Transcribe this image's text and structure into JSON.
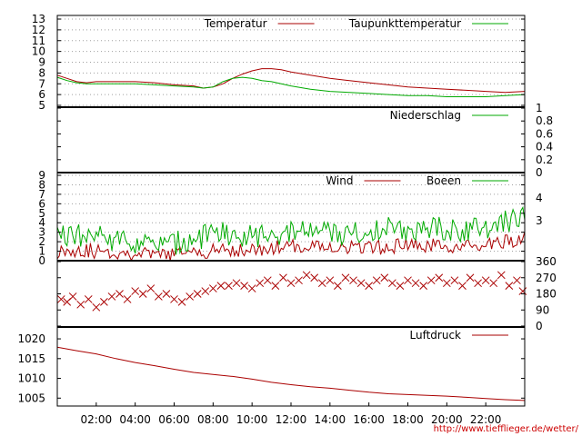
{
  "colors": {
    "red": "#aa0000",
    "green": "#00aa00"
  },
  "x_axis": {
    "unit": "hours",
    "range": [
      0,
      24
    ],
    "tick_values": [
      2,
      4,
      6,
      8,
      10,
      12,
      14,
      16,
      18,
      20,
      22
    ],
    "tick_labels": [
      "02:00",
      "04:00",
      "06:00",
      "08:00",
      "10:00",
      "12:00",
      "14:00",
      "16:00",
      "18:00",
      "20:00",
      "22:00"
    ]
  },
  "credit": "http://www.tiefflieger.de/wetter/",
  "chart_data": [
    {
      "type": "line",
      "ylim": [
        5,
        13
      ],
      "yticks": [
        5,
        6,
        7,
        8,
        9,
        10,
        11,
        12,
        13
      ],
      "grid": true,
      "legend": "top-right",
      "series": [
        {
          "name": "Temperatur",
          "color": "#aa0000",
          "x": [
            0,
            0.5,
            1,
            1.5,
            2,
            3,
            4,
            5,
            6,
            7,
            7.5,
            8,
            8.5,
            9,
            9.5,
            10,
            10.5,
            11,
            11.5,
            12,
            13,
            14,
            15,
            16,
            17,
            18,
            19,
            20,
            21,
            22,
            23,
            24
          ],
          "values": [
            7.8,
            7.5,
            7.2,
            7.1,
            7.2,
            7.2,
            7.2,
            7.1,
            6.9,
            6.8,
            6.6,
            6.7,
            7.0,
            7.5,
            7.9,
            8.2,
            8.4,
            8.4,
            8.3,
            8.1,
            7.8,
            7.5,
            7.3,
            7.1,
            6.9,
            6.7,
            6.6,
            6.5,
            6.4,
            6.3,
            6.2,
            6.3
          ]
        },
        {
          "name": "Taupunkttemperatur",
          "color": "#00aa00",
          "x": [
            0,
            0.5,
            1,
            1.5,
            2,
            3,
            4,
            5,
            6,
            7,
            7.5,
            8,
            8.5,
            9,
            9.5,
            10,
            10.5,
            11,
            11.5,
            12,
            13,
            14,
            15,
            16,
            17,
            18,
            19,
            20,
            21,
            22,
            23,
            24
          ],
          "values": [
            7.6,
            7.3,
            7.1,
            7.0,
            7.0,
            7.0,
            7.0,
            6.9,
            6.8,
            6.7,
            6.6,
            6.7,
            7.2,
            7.5,
            7.6,
            7.5,
            7.3,
            7.2,
            7.0,
            6.8,
            6.5,
            6.3,
            6.2,
            6.1,
            6.0,
            5.9,
            5.9,
            5.8,
            5.8,
            5.8,
            5.9,
            6.0
          ]
        }
      ]
    },
    {
      "type": "line",
      "ylim": [
        0,
        1
      ],
      "yticks": [
        0,
        0.2,
        0.4,
        0.6,
        0.8,
        1
      ],
      "ytick_labels": [
        "0",
        "0.2",
        "0.4",
        "0.6",
        "0.8",
        "1"
      ],
      "grid": false,
      "legend": "top-right",
      "series": [
        {
          "name": "Niederschlag",
          "color": "#00aa00",
          "x": [
            0,
            24
          ],
          "values": [
            0,
            0
          ]
        }
      ]
    },
    {
      "type": "line",
      "ylim": [
        0,
        9
      ],
      "yticks": [
        0,
        1,
        2,
        3,
        4,
        5,
        6,
        7,
        8,
        9
      ],
      "grid": true,
      "legend": "top-right",
      "right_labels": [
        "4",
        "3"
      ],
      "series": [
        {
          "name": "Wind",
          "color": "#aa0000",
          "x": [
            0,
            1,
            2,
            3,
            4,
            5,
            6,
            7,
            8,
            9,
            10,
            11,
            12,
            13,
            14,
            15,
            16,
            17,
            18,
            19,
            20,
            21,
            22,
            23,
            24
          ],
          "values": [
            1.0,
            1.2,
            1.0,
            0.8,
            0.8,
            0.5,
            0.7,
            0.9,
            1.0,
            1.2,
            1.1,
            1.3,
            1.5,
            1.6,
            1.5,
            1.4,
            1.3,
            1.5,
            1.6,
            1.5,
            1.6,
            1.4,
            1.5,
            2.0,
            2.3
          ]
        },
        {
          "name": "Boeen",
          "color": "#00aa00",
          "x": [
            0,
            1,
            2,
            3,
            4,
            5,
            6,
            7,
            8,
            9,
            10,
            11,
            12,
            13,
            14,
            15,
            16,
            17,
            18,
            19,
            20,
            21,
            22,
            23,
            24
          ],
          "values": [
            2.4,
            2.6,
            2.5,
            2.2,
            2.0,
            1.5,
            1.8,
            2.3,
            2.7,
            2.9,
            2.6,
            3.0,
            2.8,
            3.2,
            3.0,
            2.9,
            3.1,
            3.3,
            3.4,
            3.2,
            3.5,
            3.1,
            3.6,
            4.0,
            4.6
          ]
        }
      ]
    },
    {
      "type": "scatter",
      "ylim": [
        0,
        360
      ],
      "yticks": [
        0,
        90,
        180,
        270,
        360
      ],
      "grid": false,
      "legend": "none",
      "series": [
        {
          "color": "#aa0000",
          "x": [
            0.2,
            0.5,
            0.8,
            1.2,
            1.6,
            2.0,
            2.4,
            2.8,
            3.2,
            3.6,
            4.0,
            4.4,
            4.8,
            5.2,
            5.6,
            6.0,
            6.4,
            6.8,
            7.2,
            7.6,
            8.0,
            8.4,
            8.8,
            9.2,
            9.6,
            10.0,
            10.4,
            10.8,
            11.2,
            11.6,
            12.0,
            12.4,
            12.8,
            13.2,
            13.6,
            14.0,
            14.4,
            14.8,
            15.2,
            15.6,
            16.0,
            16.4,
            16.8,
            17.2,
            17.6,
            18.0,
            18.4,
            18.8,
            19.2,
            19.6,
            20.0,
            20.4,
            20.8,
            21.2,
            21.6,
            22.0,
            22.4,
            22.8,
            23.2,
            23.6,
            23.9
          ],
          "values": [
            150,
            135,
            165,
            120,
            150,
            105,
            135,
            165,
            180,
            150,
            195,
            180,
            210,
            165,
            180,
            150,
            135,
            165,
            180,
            195,
            210,
            225,
            225,
            240,
            225,
            210,
            240,
            255,
            225,
            270,
            240,
            255,
            285,
            270,
            240,
            255,
            225,
            270,
            255,
            240,
            225,
            255,
            270,
            240,
            225,
            255,
            240,
            225,
            255,
            270,
            240,
            255,
            225,
            270,
            240,
            255,
            240,
            285,
            225,
            255,
            195
          ]
        }
      ]
    },
    {
      "type": "line",
      "ylim": [
        1003,
        1023
      ],
      "yticks": [
        1005,
        1010,
        1015,
        1020
      ],
      "grid": false,
      "legend": "top-right",
      "series": [
        {
          "name": "Luftdruck",
          "color": "#aa0000",
          "x": [
            0,
            1,
            2,
            3,
            4,
            5,
            6,
            7,
            8,
            9,
            10,
            11,
            12,
            13,
            14,
            15,
            16,
            17,
            18,
            19,
            20,
            21,
            22,
            23,
            24
          ],
          "values": [
            1017.9,
            1017.0,
            1016.2,
            1015.0,
            1014.0,
            1013.2,
            1012.3,
            1011.5,
            1011.0,
            1010.5,
            1009.8,
            1009.0,
            1008.4,
            1007.9,
            1007.5,
            1007.0,
            1006.5,
            1006.1,
            1005.9,
            1005.7,
            1005.5,
            1005.2,
            1004.9,
            1004.6,
            1004.4
          ]
        }
      ]
    }
  ]
}
